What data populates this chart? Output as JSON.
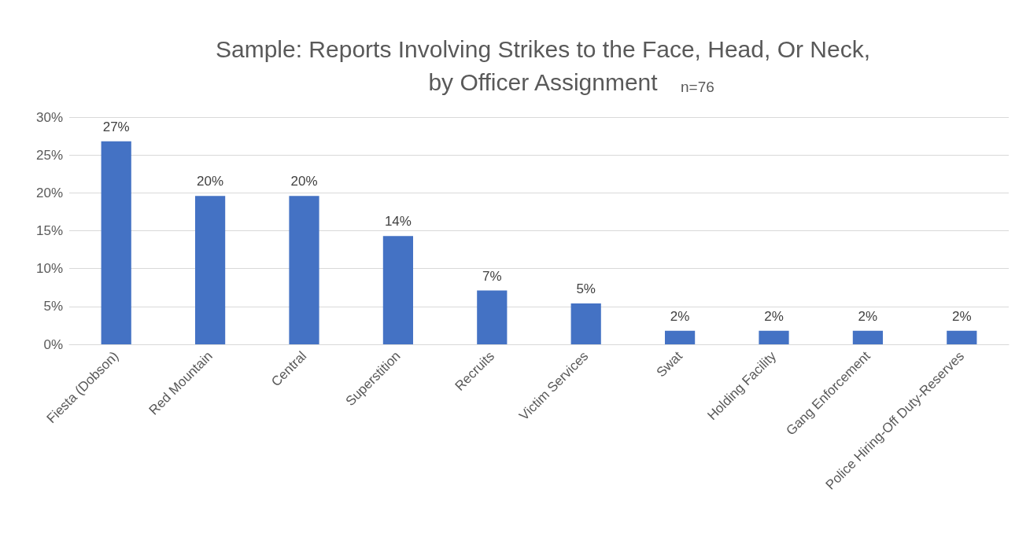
{
  "chart_data": {
    "type": "bar",
    "title": "Sample: Reports Involving Strikes to the Face, Head, Or Neck,\nby Officer Assignment",
    "subtitle": "n=76",
    "categories": [
      "Fiesta (Dobson)",
      "Red Mountain",
      "Central",
      "Superstition",
      "Recruits",
      "Victim Services",
      "Swat",
      "Holding Facility",
      "Gang Enforcement",
      "Police Hiring-Off Duty-Reserves"
    ],
    "values": [
      26.8,
      19.6,
      19.6,
      14.3,
      7.1,
      5.4,
      1.8,
      1.8,
      1.8,
      1.8
    ],
    "value_labels": [
      "27%",
      "20%",
      "20%",
      "14%",
      "7%",
      "5%",
      "2%",
      "2%",
      "2%",
      "2%"
    ],
    "color": "#4472c4",
    "ylim": [
      0,
      30
    ],
    "yticks": [
      {
        "value": 0,
        "label": "0%"
      },
      {
        "value": 5,
        "label": "5%"
      },
      {
        "value": 10,
        "label": "10%"
      },
      {
        "value": 15,
        "label": "15%"
      },
      {
        "value": 20,
        "label": "20%"
      },
      {
        "value": 25,
        "label": "25%"
      },
      {
        "value": 30,
        "label": "30%"
      }
    ],
    "grid": "y"
  }
}
